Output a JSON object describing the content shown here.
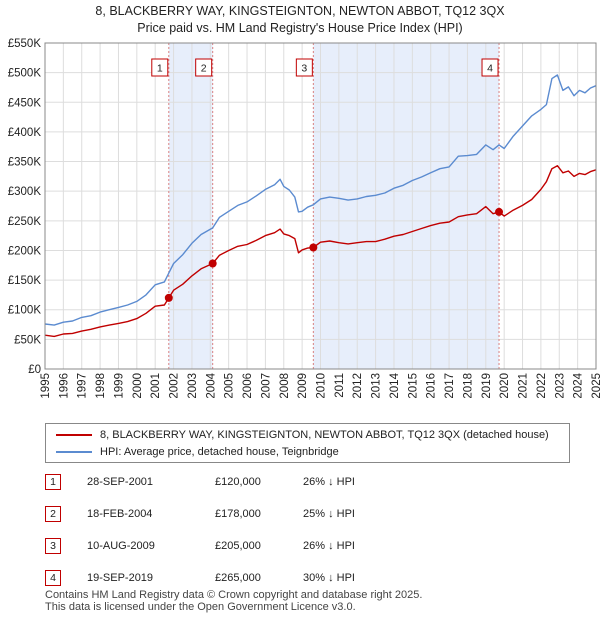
{
  "colors": {
    "price_line": "#c00000",
    "hpi_line": "#5b8bd0",
    "shade": "#e7eefb",
    "vline": "#d98080",
    "grid": "#dddddd"
  },
  "title": {
    "line1": "8, BLACKBERRY WAY, KINGSTEIGNTON, NEWTON ABBOT, TQ12 3QX",
    "line2": "Price paid vs. HM Land Registry's House Price Index (HPI)"
  },
  "legend": {
    "price_label": "8, BLACKBERRY WAY, KINGSTEIGNTON, NEWTON ABBOT, TQ12 3QX (detached house)",
    "hpi_label": "HPI: Average price, detached house, Teignbridge"
  },
  "sales": [
    {
      "num": "1",
      "date": "28-SEP-2001",
      "price": "£120,000",
      "hpi": "26% ↓ HPI"
    },
    {
      "num": "2",
      "date": "18-FEB-2004",
      "price": "£178,000",
      "hpi": "25% ↓ HPI"
    },
    {
      "num": "3",
      "date": "10-AUG-2009",
      "price": "£205,000",
      "hpi": "26% ↓ HPI"
    },
    {
      "num": "4",
      "date": "19-SEP-2019",
      "price": "£265,000",
      "hpi": "30% ↓ HPI"
    }
  ],
  "footer": {
    "line1": "Contains HM Land Registry data © Crown copyright and database right 2025.",
    "line2": "This data is licensed under the Open Government Licence v3.0."
  },
  "chart_data": {
    "type": "line",
    "title": "8, BLACKBERRY WAY, KINGSTEIGNTON, NEWTON ABBOT, TQ12 3QX Price paid vs. HM Land Registry's House Price Index (HPI)",
    "xlabel": "",
    "ylabel": "",
    "xlim": [
      1995,
      2025
    ],
    "ylim": [
      0,
      550000
    ],
    "y_ticks": [
      0,
      50000,
      100000,
      150000,
      200000,
      250000,
      300000,
      350000,
      400000,
      450000,
      500000,
      550000
    ],
    "y_tick_labels": [
      "£0",
      "£50K",
      "£100K",
      "£150K",
      "£200K",
      "£250K",
      "£300K",
      "£350K",
      "£400K",
      "£450K",
      "£500K",
      "£550K"
    ],
    "x_ticks": [
      1995,
      1996,
      1997,
      1998,
      1999,
      2000,
      2001,
      2002,
      2003,
      2004,
      2005,
      2006,
      2007,
      2008,
      2009,
      2010,
      2011,
      2012,
      2013,
      2014,
      2015,
      2016,
      2017,
      2018,
      2019,
      2020,
      2021,
      2022,
      2023,
      2024,
      2025
    ],
    "x_tick_labels": [
      "1995",
      "1996",
      "1997",
      "1998",
      "1999",
      "2000",
      "2001",
      "2002",
      "2003",
      "2004",
      "2005",
      "2006",
      "2007",
      "2008",
      "2009",
      "2010",
      "2011",
      "2012",
      "2013",
      "2014",
      "2015",
      "2016",
      "2017",
      "2018",
      "2019",
      "2020",
      "2021",
      "2022",
      "2023",
      "2024",
      "2025"
    ],
    "grid": true,
    "shaded_ranges": [
      [
        2001.74,
        2004.13
      ],
      [
        2009.61,
        2019.72
      ]
    ],
    "series": [
      {
        "name": "8, BLACKBERRY WAY, KINGSTEIGNTON, NEWTON ABBOT, TQ12 3QX (detached house)",
        "x": [
          1995.0,
          1995.5,
          1996.0,
          1996.5,
          1997.0,
          1997.5,
          1998.0,
          1998.5,
          1999.0,
          1999.5,
          2000.0,
          2000.5,
          2001.0,
          2001.5,
          2001.74,
          2002.0,
          2002.5,
          2003.0,
          2003.5,
          2004.13,
          2004.5,
          2005.0,
          2005.5,
          2006.0,
          2006.5,
          2007.0,
          2007.5,
          2007.8,
          2008.0,
          2008.3,
          2008.6,
          2008.8,
          2009.0,
          2009.3,
          2009.61,
          2010.0,
          2010.5,
          2011.0,
          2011.5,
          2012.0,
          2012.5,
          2013.0,
          2013.5,
          2014.0,
          2014.5,
          2015.0,
          2015.5,
          2016.0,
          2016.5,
          2017.0,
          2017.5,
          2018.0,
          2018.5,
          2019.0,
          2019.4,
          2019.72,
          2020.0,
          2020.5,
          2021.0,
          2021.5,
          2022.0,
          2022.3,
          2022.6,
          2022.9,
          2023.2,
          2023.5,
          2023.8,
          2024.1,
          2024.4,
          2024.7,
          2025.0
        ],
        "values": [
          57000,
          55000,
          59000,
          60000,
          64000,
          67000,
          71000,
          74000,
          77000,
          80000,
          85000,
          94000,
          106000,
          108000,
          120000,
          133000,
          143000,
          157000,
          169000,
          178000,
          192000,
          200000,
          207000,
          210000,
          217000,
          225000,
          230000,
          236000,
          228000,
          225000,
          220000,
          196000,
          201000,
          204000,
          205000,
          214000,
          216000,
          213000,
          211000,
          213000,
          215000,
          215000,
          219000,
          224000,
          227000,
          232000,
          237000,
          242000,
          246000,
          248000,
          257000,
          260000,
          262000,
          274000,
          262000,
          265000,
          258000,
          268000,
          276000,
          286000,
          303000,
          316000,
          338000,
          343000,
          331000,
          334000,
          325000,
          330000,
          328000,
          333000,
          336000
        ]
      },
      {
        "name": "HPI: Average price, detached house, Teignbridge",
        "x": [
          1995.0,
          1995.5,
          1996.0,
          1996.5,
          1997.0,
          1997.5,
          1998.0,
          1998.5,
          1999.0,
          1999.5,
          2000.0,
          2000.5,
          2001.0,
          2001.5,
          2001.74,
          2002.0,
          2002.5,
          2003.0,
          2003.5,
          2004.13,
          2004.5,
          2005.0,
          2005.5,
          2006.0,
          2006.5,
          2007.0,
          2007.5,
          2007.8,
          2008.0,
          2008.3,
          2008.6,
          2008.8,
          2009.0,
          2009.3,
          2009.61,
          2010.0,
          2010.5,
          2011.0,
          2011.5,
          2012.0,
          2012.5,
          2013.0,
          2013.5,
          2014.0,
          2014.5,
          2015.0,
          2015.5,
          2016.0,
          2016.5,
          2017.0,
          2017.5,
          2018.0,
          2018.5,
          2019.0,
          2019.4,
          2019.72,
          2020.0,
          2020.5,
          2021.0,
          2021.5,
          2022.0,
          2022.3,
          2022.6,
          2022.9,
          2023.2,
          2023.5,
          2023.8,
          2024.1,
          2024.4,
          2024.7,
          2025.0
        ],
        "values": [
          76000,
          74000,
          79000,
          81000,
          87000,
          90000,
          96000,
          100000,
          104000,
          108000,
          114000,
          125000,
          142000,
          147000,
          162000,
          178000,
          193000,
          212000,
          227000,
          238000,
          256000,
          266000,
          276000,
          282000,
          292000,
          303000,
          311000,
          320000,
          308000,
          302000,
          290000,
          265000,
          266000,
          273000,
          277000,
          287000,
          290000,
          288000,
          285000,
          287000,
          291000,
          293000,
          297000,
          305000,
          310000,
          318000,
          324000,
          331000,
          338000,
          341000,
          359000,
          360000,
          362000,
          378000,
          370000,
          378000,
          372000,
          393000,
          410000,
          427000,
          438000,
          446000,
          490000,
          496000,
          470000,
          476000,
          461000,
          470000,
          466000,
          474000,
          478000
        ]
      }
    ],
    "sale_markers": [
      {
        "label": "1",
        "x": 2001.74,
        "value": 120000
      },
      {
        "label": "2",
        "x": 2004.13,
        "value": 178000
      },
      {
        "label": "3",
        "x": 2009.61,
        "value": 205000
      },
      {
        "label": "4",
        "x": 2019.72,
        "value": 265000
      }
    ]
  }
}
